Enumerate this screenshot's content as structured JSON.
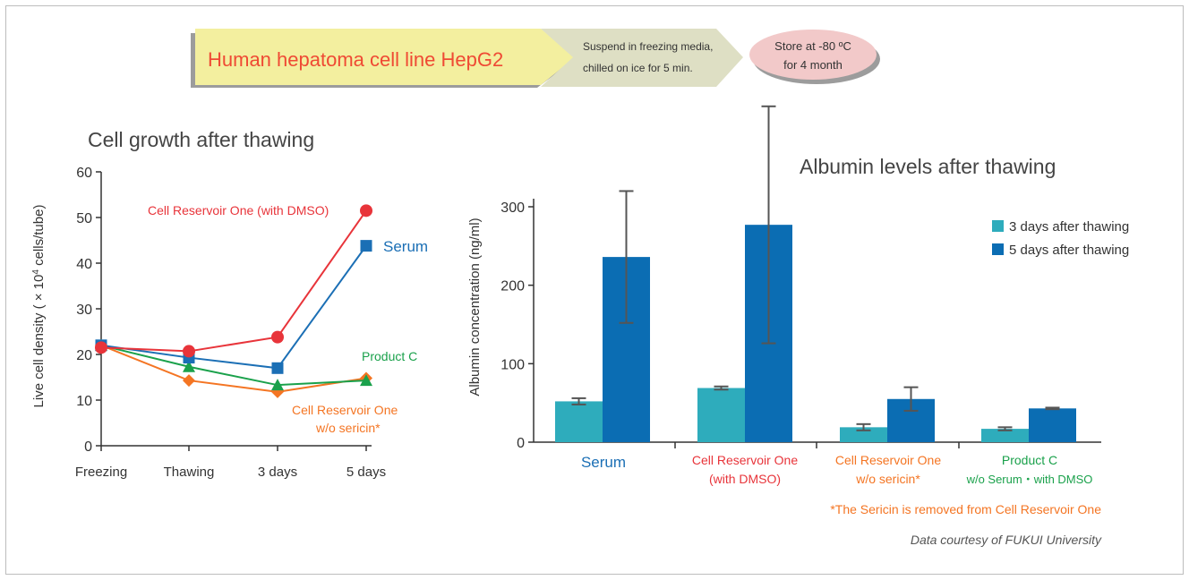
{
  "banner": {
    "step1": "Human hepatoma cell line HepG2",
    "step2_line1": "Suspend in freezing media,",
    "step2_line2": "chilled on ice for 5 min.",
    "step3_line1": "Store at -80 ºC",
    "step3_line2": "for 4 month"
  },
  "colors": {
    "red": "#e8343a",
    "blue": "#1b6fb5",
    "green": "#1aa14b",
    "orange": "#f47523",
    "teal": "#2eacbc",
    "darkblue": "#0b6db3",
    "banner_fill": "#f3ef9f",
    "oval_fill": "#f2c9c9"
  },
  "chart_data": [
    {
      "type": "line",
      "title": "Cell growth after thawing",
      "ylabel_prefix": "Live cell density ( × 10",
      "ylabel_exp": "4",
      "ylabel_suffix": " cells/tube)",
      "categories": [
        "Freezing",
        "Thawing",
        "3 days",
        "5 days"
      ],
      "ylim": [
        0,
        60
      ],
      "yticks": [
        "0",
        "10",
        "20",
        "30",
        "40",
        "50",
        "60"
      ],
      "series": [
        {
          "name": "Cell Reservoir One (with DMSO)",
          "values": [
            21.5,
            20.7,
            23.8,
            51.5
          ],
          "marker": "circle"
        },
        {
          "name": "Serum",
          "values": [
            22,
            19.3,
            17,
            43.8
          ],
          "marker": "square"
        },
        {
          "name": "Product C",
          "values": [
            22,
            17.3,
            13.3,
            14.3
          ],
          "marker": "triangle"
        },
        {
          "name_line1": "Cell Reservoir One",
          "name_line2": "w/o sericin*",
          "values": [
            22,
            14.3,
            11.8,
            14.8
          ],
          "marker": "diamond"
        }
      ]
    },
    {
      "type": "bar",
      "title": "Albumin levels after thawing",
      "ylabel": "Albumin concentration (ng/ml)",
      "ylim": [
        0,
        300
      ],
      "yticks": [
        "0",
        "100",
        "200",
        "300"
      ],
      "legend": [
        "3 days after thawing",
        "5 days after thawing"
      ],
      "groups": [
        {
          "label_line1": "Serum",
          "label_line2": "",
          "v3": 52,
          "e3": 4,
          "v5": 236,
          "e5": 84
        },
        {
          "label_line1": "Cell Reservoir One",
          "label_line2": "(with DMSO)",
          "v3": 69,
          "e3": 2,
          "v5": 277,
          "e5": 151
        },
        {
          "label_line1": "Cell Reservoir One",
          "label_line2": "w/o sericin*",
          "v3": 19,
          "e3": 4,
          "v5": 55,
          "e5": 15
        },
        {
          "label_line1": "Product C",
          "label_line2": "w/o Serum・with DMSO",
          "v3": 17,
          "e3": 2,
          "v5": 43,
          "e5": 1
        }
      ]
    }
  ],
  "footnote": "*The Sericin is removed from Cell Reservoir One",
  "credit": "Data courtesy of FUKUI University"
}
